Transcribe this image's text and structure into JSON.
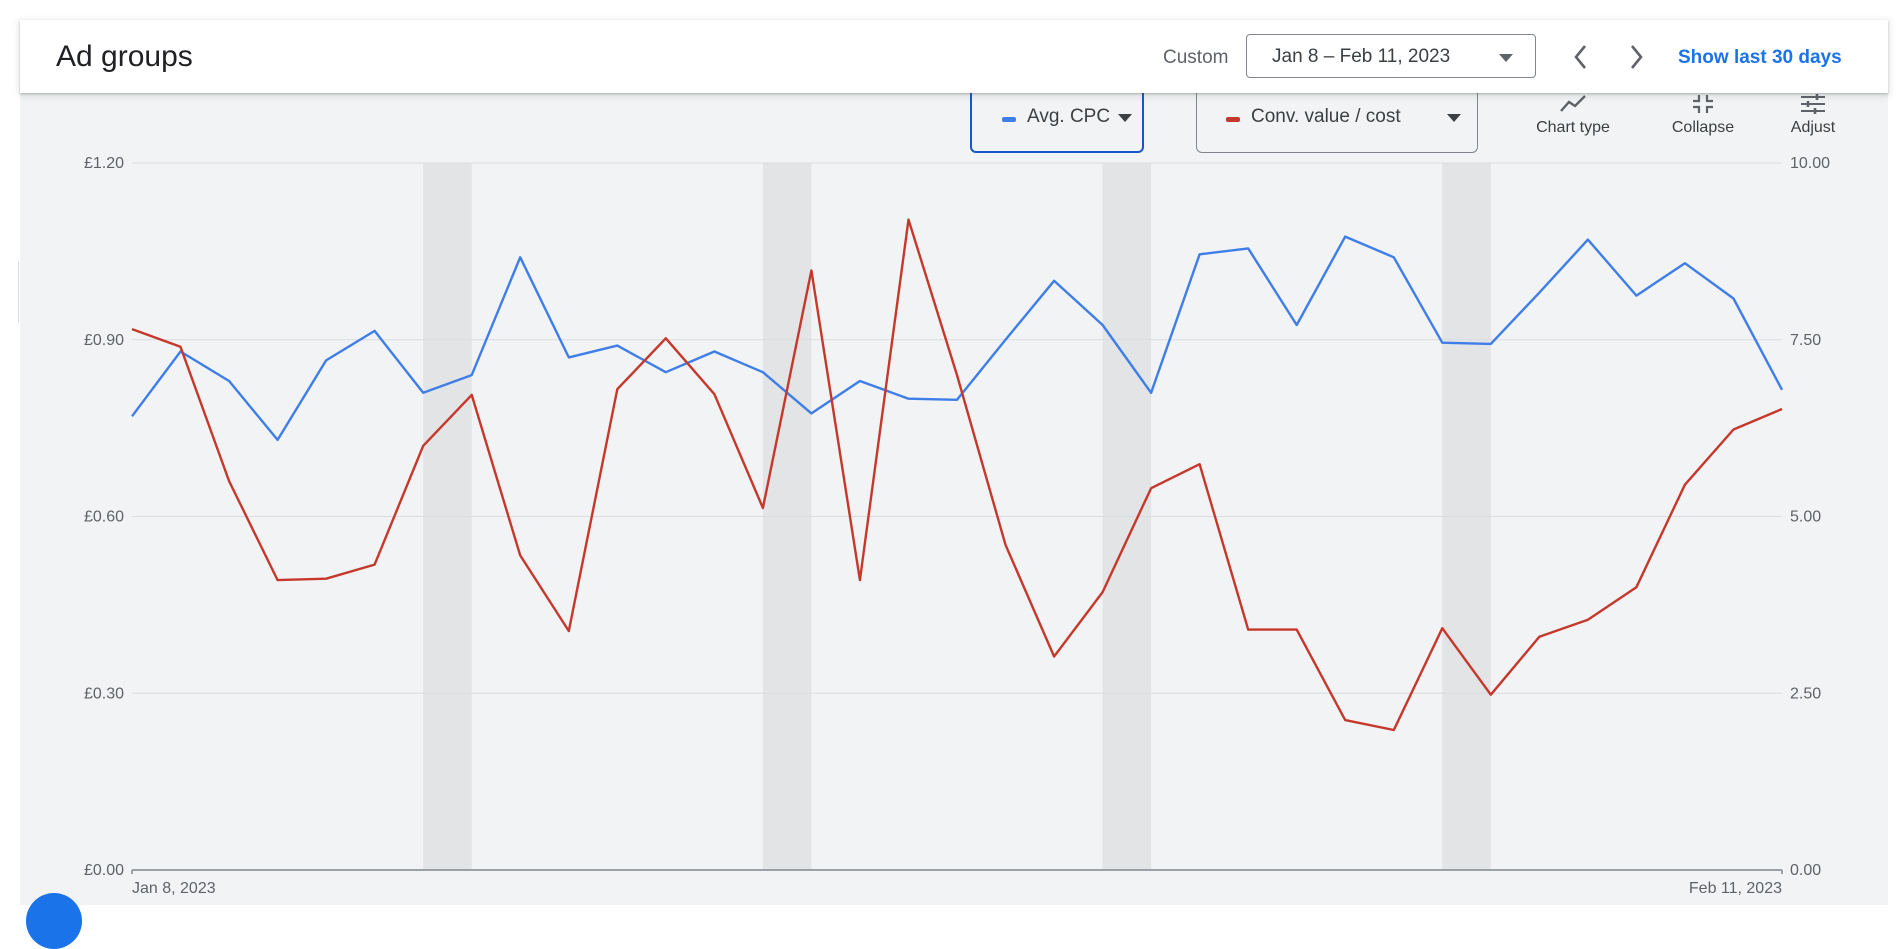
{
  "header": {
    "title": "Ad groups",
    "custom_label": "Custom",
    "date_range": "Jan 8 – Feb 11, 2023",
    "show_last_link": "Show last 30 days"
  },
  "metrics": [
    {
      "label": "Avg. CPC",
      "color": "#3f7ee8"
    },
    {
      "label": "Conv. value / cost",
      "color": "#c5382b"
    }
  ],
  "toolbar": {
    "chart_type": "Chart type",
    "collapse": "Collapse",
    "adjust": "Adjust"
  },
  "chart_data": {
    "type": "line",
    "x_start_label": "Jan 8, 2023",
    "x_end_label": "Feb 11, 2023",
    "x": [
      "2023-01-08",
      "2023-01-09",
      "2023-01-10",
      "2023-01-11",
      "2023-01-12",
      "2023-01-13",
      "2023-01-14",
      "2023-01-15",
      "2023-01-16",
      "2023-01-17",
      "2023-01-18",
      "2023-01-19",
      "2023-01-20",
      "2023-01-21",
      "2023-01-22",
      "2023-01-23",
      "2023-01-24",
      "2023-01-25",
      "2023-01-26",
      "2023-01-27",
      "2023-01-28",
      "2023-01-29",
      "2023-01-30",
      "2023-01-31",
      "2023-02-01",
      "2023-02-02",
      "2023-02-03",
      "2023-02-04",
      "2023-02-05",
      "2023-02-06",
      "2023-02-07",
      "2023-02-08",
      "2023-02-09",
      "2023-02-10",
      "2023-02-11"
    ],
    "y_left": {
      "ylim": [
        0,
        1.2
      ],
      "ticks": [
        "£0.00",
        "£0.30",
        "£0.60",
        "£0.90",
        "£1.20"
      ]
    },
    "y_right": {
      "ylim": [
        0,
        10
      ],
      "ticks": [
        "0.00",
        "2.50",
        "5.00",
        "7.50",
        "10.00"
      ]
    },
    "grid": true,
    "weekend_bands": [
      [
        "2023-01-14",
        "2023-01-15"
      ],
      [
        "2023-01-21",
        "2023-01-22"
      ],
      [
        "2023-01-28",
        "2023-01-29"
      ],
      [
        "2023-02-04",
        "2023-02-05"
      ]
    ],
    "series": [
      {
        "name": "Avg. CPC",
        "axis": "left",
        "color": "#3f7ee8",
        "values": [
          0.77,
          0.88,
          0.83,
          0.73,
          0.865,
          0.915,
          0.81,
          0.84,
          1.04,
          0.87,
          0.89,
          0.845,
          0.88,
          0.845,
          0.775,
          0.83,
          0.8,
          0.798,
          0.9,
          1.0,
          0.925,
          0.81,
          1.045,
          1.055,
          0.925,
          1.075,
          1.04,
          0.895,
          0.893,
          0.98,
          1.07,
          0.975,
          1.03,
          0.97,
          0.815
        ]
      },
      {
        "name": "Conv. value / cost",
        "axis": "right",
        "color": "#c5382b",
        "values": [
          7.65,
          7.4,
          5.5,
          4.1,
          4.12,
          4.32,
          6.0,
          6.72,
          4.45,
          3.38,
          6.8,
          7.52,
          6.73,
          5.12,
          8.48,
          4.1,
          9.2,
          7.0,
          4.6,
          3.02,
          3.93,
          5.4,
          5.74,
          3.4,
          3.4,
          2.12,
          1.98,
          3.42,
          2.48,
          3.3,
          3.54,
          4.0,
          5.45,
          6.23,
          6.52
        ]
      }
    ]
  }
}
